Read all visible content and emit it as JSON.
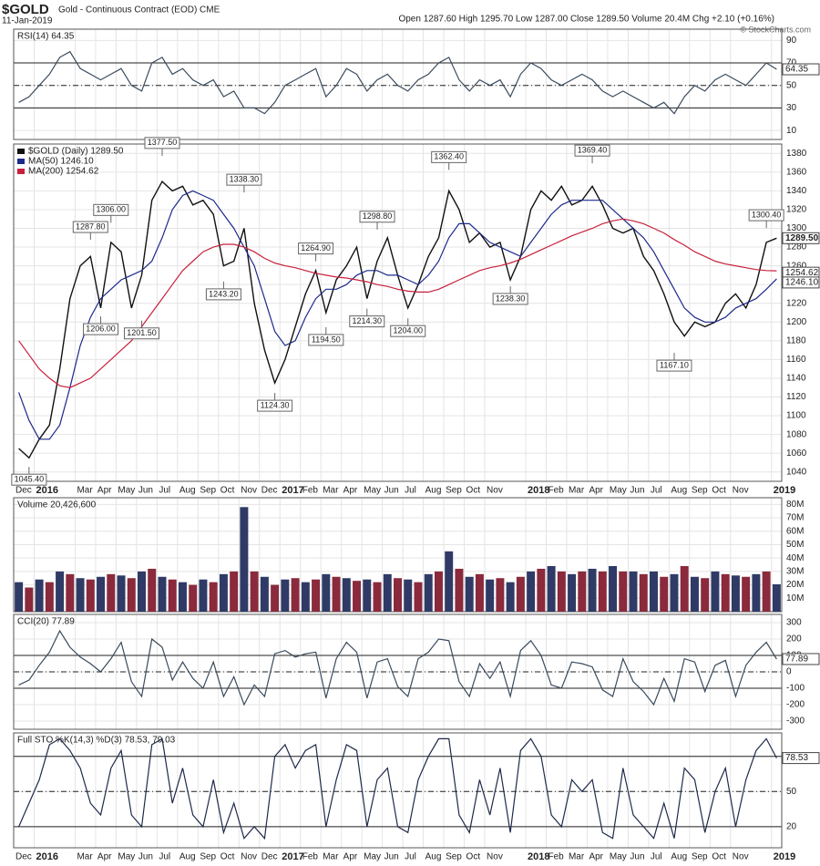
{
  "header": {
    "symbol": "$GOLD",
    "description": "Gold - Continuous Contract (EOD) CME",
    "date": "11-Jan-2019",
    "quote": "Open 1287.60  High 1295.70  Low 1287.00  Close 1289.50  Volume 20.4M  Chg +2.10 (+0.16%)",
    "credit": "© StockCharts.com"
  },
  "chart_data": [
    {
      "type": "line",
      "title": "RSI(14) 64.35",
      "ylim": [
        2,
        100
      ],
      "yticks": [
        10,
        30,
        50,
        70,
        90
      ],
      "grid": true,
      "hlines": [
        70,
        30
      ],
      "dashed_hlines": [
        50
      ],
      "tags": [
        {
          "value": 64.35,
          "label": "64.35"
        }
      ],
      "series": [
        {
          "color": "#3a4a5c",
          "values": [
            35,
            40,
            50,
            60,
            75,
            80,
            65,
            60,
            55,
            60,
            65,
            50,
            45,
            70,
            75,
            60,
            65,
            55,
            50,
            55,
            40,
            45,
            30,
            30,
            25,
            35,
            50,
            55,
            60,
            65,
            40,
            50,
            65,
            60,
            45,
            55,
            60,
            50,
            45,
            55,
            60,
            70,
            75,
            55,
            45,
            55,
            50,
            55,
            40,
            60,
            70,
            65,
            55,
            50,
            55,
            60,
            55,
            45,
            40,
            45,
            40,
            35,
            30,
            35,
            25,
            40,
            50,
            45,
            55,
            60,
            55,
            50,
            60,
            70,
            64.35
          ]
        }
      ]
    },
    {
      "type": "line",
      "ylim": [
        1030,
        1390
      ],
      "yticks": [
        1040,
        1060,
        1080,
        1100,
        1120,
        1140,
        1160,
        1180,
        1200,
        1220,
        1240,
        1260,
        1280,
        1300,
        1320,
        1340,
        1360,
        1380
      ],
      "grid": true,
      "categories": [
        "Dec",
        null,
        "2016",
        null,
        null,
        null,
        "Mar",
        null,
        "Apr",
        null,
        "May",
        null,
        "Jun",
        null,
        "Jul",
        null,
        "Aug",
        null,
        "Sep",
        null,
        "Oct",
        null,
        "Nov",
        null,
        "Dec",
        null,
        "2017",
        null,
        "Feb",
        null,
        "Mar",
        null,
        "Apr",
        null,
        "May",
        null,
        "Jun",
        null,
        "Jul",
        null,
        "Aug",
        null,
        "Sep",
        null,
        "Oct",
        null,
        "Nov",
        null,
        null,
        null,
        "2018",
        null,
        "Feb",
        null,
        "Mar",
        null,
        "Apr",
        null,
        "May",
        null,
        "Jun",
        null,
        "Jul",
        null,
        "Aug",
        null,
        "Sep",
        null,
        "Oct",
        null,
        "Nov",
        null,
        null,
        null,
        "2019"
      ],
      "series": [
        {
          "name": "$GOLD (Daily) 1289.50",
          "color": "#111111",
          "values": [
            1065,
            1055,
            1075,
            1090,
            1150,
            1225,
            1260,
            1270,
            1215,
            1285,
            1275,
            1215,
            1250,
            1330,
            1350,
            1340,
            1345,
            1325,
            1330,
            1315,
            1260,
            1265,
            1300,
            1220,
            1170,
            1135,
            1160,
            1195,
            1230,
            1255,
            1210,
            1245,
            1260,
            1280,
            1225,
            1265,
            1290,
            1250,
            1215,
            1240,
            1270,
            1290,
            1340,
            1320,
            1285,
            1295,
            1280,
            1285,
            1245,
            1270,
            1320,
            1340,
            1330,
            1345,
            1325,
            1330,
            1345,
            1325,
            1300,
            1295,
            1300,
            1270,
            1255,
            1230,
            1200,
            1185,
            1200,
            1195,
            1200,
            1220,
            1230,
            1215,
            1240,
            1285,
            1289.5
          ]
        },
        {
          "name": "MA(50) 1246.10",
          "color": "#1c2a8c",
          "values": [
            1125,
            1095,
            1075,
            1075,
            1090,
            1130,
            1175,
            1205,
            1225,
            1235,
            1245,
            1250,
            1255,
            1265,
            1290,
            1320,
            1335,
            1340,
            1335,
            1330,
            1315,
            1300,
            1280,
            1260,
            1225,
            1190,
            1175,
            1180,
            1205,
            1225,
            1235,
            1235,
            1240,
            1250,
            1255,
            1255,
            1250,
            1250,
            1245,
            1240,
            1250,
            1265,
            1290,
            1305,
            1305,
            1295,
            1285,
            1280,
            1275,
            1270,
            1285,
            1300,
            1315,
            1325,
            1330,
            1330,
            1330,
            1330,
            1320,
            1310,
            1300,
            1290,
            1275,
            1255,
            1235,
            1215,
            1205,
            1200,
            1200,
            1205,
            1215,
            1220,
            1225,
            1235,
            1246.1
          ]
        },
        {
          "name": "MA(200) 1254.62",
          "color": "#c8203c",
          "values": [
            1180,
            1165,
            1150,
            1140,
            1132,
            1130,
            1135,
            1140,
            1150,
            1160,
            1170,
            1180,
            1195,
            1210,
            1225,
            1240,
            1255,
            1265,
            1275,
            1280,
            1283,
            1283,
            1280,
            1275,
            1268,
            1263,
            1260,
            1258,
            1255,
            1252,
            1250,
            1248,
            1247,
            1245,
            1243,
            1240,
            1238,
            1235,
            1233,
            1232,
            1232,
            1235,
            1240,
            1245,
            1250,
            1255,
            1258,
            1260,
            1263,
            1267,
            1272,
            1277,
            1282,
            1287,
            1292,
            1296,
            1300,
            1305,
            1308,
            1310,
            1308,
            1305,
            1300,
            1295,
            1288,
            1282,
            1275,
            1270,
            1265,
            1262,
            1260,
            1258,
            1256,
            1255,
            1254.62
          ]
        }
      ],
      "tags": [
        {
          "value": 1289.5,
          "label": "1289.50"
        },
        {
          "value": 1254.62,
          "label": "1254.62"
        },
        {
          "value": 1246.1,
          "label": "1246.10"
        }
      ],
      "annotations": [
        {
          "index": 1,
          "value": 1045.4,
          "label": "1045.40"
        },
        {
          "index": 7,
          "value": 1287.8,
          "label": "1287.80"
        },
        {
          "index": 8,
          "value": 1206,
          "label": "1206.00"
        },
        {
          "index": 9,
          "value": 1306,
          "label": "1306.00"
        },
        {
          "index": 12,
          "value": 1201.5,
          "label": "1201.50"
        },
        {
          "index": 14,
          "value": 1377.5,
          "label": "1377.50"
        },
        {
          "index": 22,
          "value": 1338.3,
          "label": "1338.30"
        },
        {
          "index": 20,
          "value": 1243.2,
          "label": "1243.20"
        },
        {
          "index": 25,
          "value": 1124.3,
          "label": "1124.30"
        },
        {
          "index": 29,
          "value": 1264.9,
          "label": "1264.90"
        },
        {
          "index": 30,
          "value": 1194.5,
          "label": "1194.50"
        },
        {
          "index": 35,
          "value": 1298.8,
          "label": "1298.80"
        },
        {
          "index": 34,
          "value": 1214.3,
          "label": "1214.30"
        },
        {
          "index": 38,
          "value": 1204,
          "label": "1204.00"
        },
        {
          "index": 42,
          "value": 1362.4,
          "label": "1362.40"
        },
        {
          "index": 48,
          "value": 1238.3,
          "label": "1238.30"
        },
        {
          "index": 56,
          "value": 1369.4,
          "label": "1369.40"
        },
        {
          "index": 64,
          "value": 1167.1,
          "label": "1167.10"
        },
        {
          "index": 73,
          "value": 1300.4,
          "label": "1300.40"
        }
      ]
    },
    {
      "type": "bar",
      "title": "Volume 20,426,600",
      "ylim": [
        0,
        85000000
      ],
      "yticks": [
        {
          "value": 10000000,
          "label": "10M"
        },
        {
          "value": 20000000,
          "label": "20M"
        },
        {
          "value": 30000000,
          "label": "30M"
        },
        {
          "value": 40000000,
          "label": "40M"
        },
        {
          "value": 50000000,
          "label": "50M"
        },
        {
          "value": 60000000,
          "label": "60M"
        },
        {
          "value": 70000000,
          "label": "70M"
        },
        {
          "value": 80000000,
          "label": "80M"
        }
      ],
      "grid": true,
      "series": [
        {
          "color": "#2f3b66",
          "values": [
            22000000,
            18000000,
            24000000,
            22000000,
            30000000,
            28000000,
            25000000,
            24000000,
            26000000,
            28000000,
            27000000,
            25000000,
            30000000,
            32000000,
            26000000,
            24000000,
            22000000,
            20000000,
            24000000,
            22000000,
            28000000,
            30000000,
            78000000,
            30000000,
            26000000,
            20000000,
            24000000,
            25000000,
            22000000,
            24000000,
            28000000,
            26000000,
            25000000,
            23000000,
            24000000,
            22000000,
            28000000,
            25000000,
            24000000,
            22000000,
            28000000,
            30000000,
            45000000,
            32000000,
            26000000,
            28000000,
            24000000,
            25000000,
            22000000,
            26000000,
            30000000,
            32000000,
            34000000,
            30000000,
            28000000,
            30000000,
            32000000,
            30000000,
            34000000,
            30000000,
            30000000,
            28000000,
            30000000,
            26000000,
            28000000,
            34000000,
            26000000,
            25000000,
            30000000,
            28000000,
            27000000,
            26000000,
            28000000,
            30000000,
            20426600
          ]
        }
      ]
    },
    {
      "type": "line",
      "title": "CCI(20) 77.89",
      "ylim": [
        -350,
        350
      ],
      "yticks": [
        -300,
        -200,
        -100,
        0,
        100,
        200,
        300
      ],
      "grid": true,
      "hlines": [
        100,
        -100
      ],
      "dashed_hlines": [
        0
      ],
      "tags": [
        {
          "value": 77.89,
          "label": "77.89"
        }
      ],
      "series": [
        {
          "color": "#3a4a5c",
          "values": [
            -80,
            -50,
            40,
            120,
            250,
            150,
            90,
            50,
            0,
            80,
            180,
            -60,
            -150,
            200,
            150,
            -50,
            60,
            -40,
            -100,
            60,
            -150,
            -30,
            -200,
            -80,
            -150,
            110,
            130,
            90,
            110,
            120,
            -160,
            80,
            180,
            120,
            -160,
            60,
            80,
            -90,
            -150,
            80,
            120,
            200,
            190,
            -60,
            -150,
            50,
            -40,
            60,
            -150,
            130,
            190,
            100,
            -80,
            -100,
            60,
            50,
            30,
            -110,
            -150,
            80,
            -60,
            -120,
            -200,
            -40,
            -180,
            80,
            60,
            -120,
            40,
            70,
            -150,
            40,
            120,
            180,
            77.89
          ]
        }
      ]
    },
    {
      "type": "line",
      "title": "Full STO %K(14,3) %D(3) 78.53, 79.03",
      "ylim": [
        2,
        100
      ],
      "yticks": [
        20,
        50,
        80
      ],
      "grid": true,
      "hlines": [
        80,
        20
      ],
      "dashed_hlines": [
        50
      ],
      "tags": [
        {
          "value": 78.53,
          "label": "78.53"
        }
      ],
      "series": [
        {
          "color": "#1e2a4a",
          "values": [
            20,
            40,
            60,
            90,
            95,
            85,
            70,
            40,
            30,
            70,
            85,
            30,
            20,
            90,
            95,
            40,
            70,
            30,
            20,
            60,
            15,
            40,
            10,
            20,
            10,
            80,
            90,
            70,
            85,
            90,
            20,
            60,
            90,
            85,
            20,
            60,
            70,
            20,
            15,
            60,
            80,
            95,
            95,
            30,
            15,
            60,
            30,
            70,
            15,
            85,
            95,
            80,
            30,
            20,
            60,
            50,
            60,
            15,
            10,
            70,
            30,
            20,
            10,
            40,
            10,
            70,
            60,
            15,
            50,
            70,
            20,
            60,
            85,
            95,
            78.53
          ]
        }
      ]
    }
  ]
}
